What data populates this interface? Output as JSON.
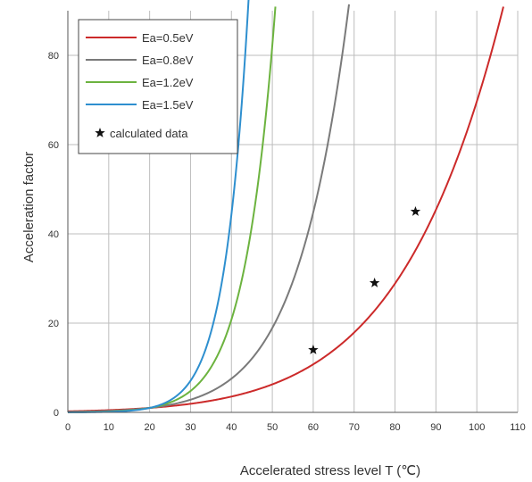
{
  "chart_data": {
    "type": "line",
    "title": "",
    "xlabel": "Accelerated stress level T (℃)",
    "ylabel": "Acceleration factor",
    "xlim": [
      0,
      110
    ],
    "ylim": [
      0,
      90
    ],
    "xticks": [
      0,
      10,
      20,
      30,
      40,
      50,
      60,
      70,
      80,
      90,
      100,
      110
    ],
    "yticks": [
      0,
      20,
      40,
      60,
      80
    ],
    "grid": true,
    "legend_position": "top-left",
    "reference_temperature_c": 20,
    "series": [
      {
        "name": "Ea=0.5eV",
        "ea_ev": 0.5,
        "color": "#cc2a2a"
      },
      {
        "name": "Ea=0.8eV",
        "ea_ev": 0.8,
        "color": "#7a7a7a"
      },
      {
        "name": "Ea=1.2eV",
        "ea_ev": 1.2,
        "color": "#6cb33f"
      },
      {
        "name": "Ea=1.5eV",
        "ea_ev": 1.5,
        "color": "#2e8fcf"
      }
    ],
    "calculated_data": {
      "name": "calculated data",
      "marker": "star",
      "points": [
        {
          "x": 60,
          "y": 14
        },
        {
          "x": 75,
          "y": 29
        },
        {
          "x": 85,
          "y": 45
        }
      ]
    }
  }
}
